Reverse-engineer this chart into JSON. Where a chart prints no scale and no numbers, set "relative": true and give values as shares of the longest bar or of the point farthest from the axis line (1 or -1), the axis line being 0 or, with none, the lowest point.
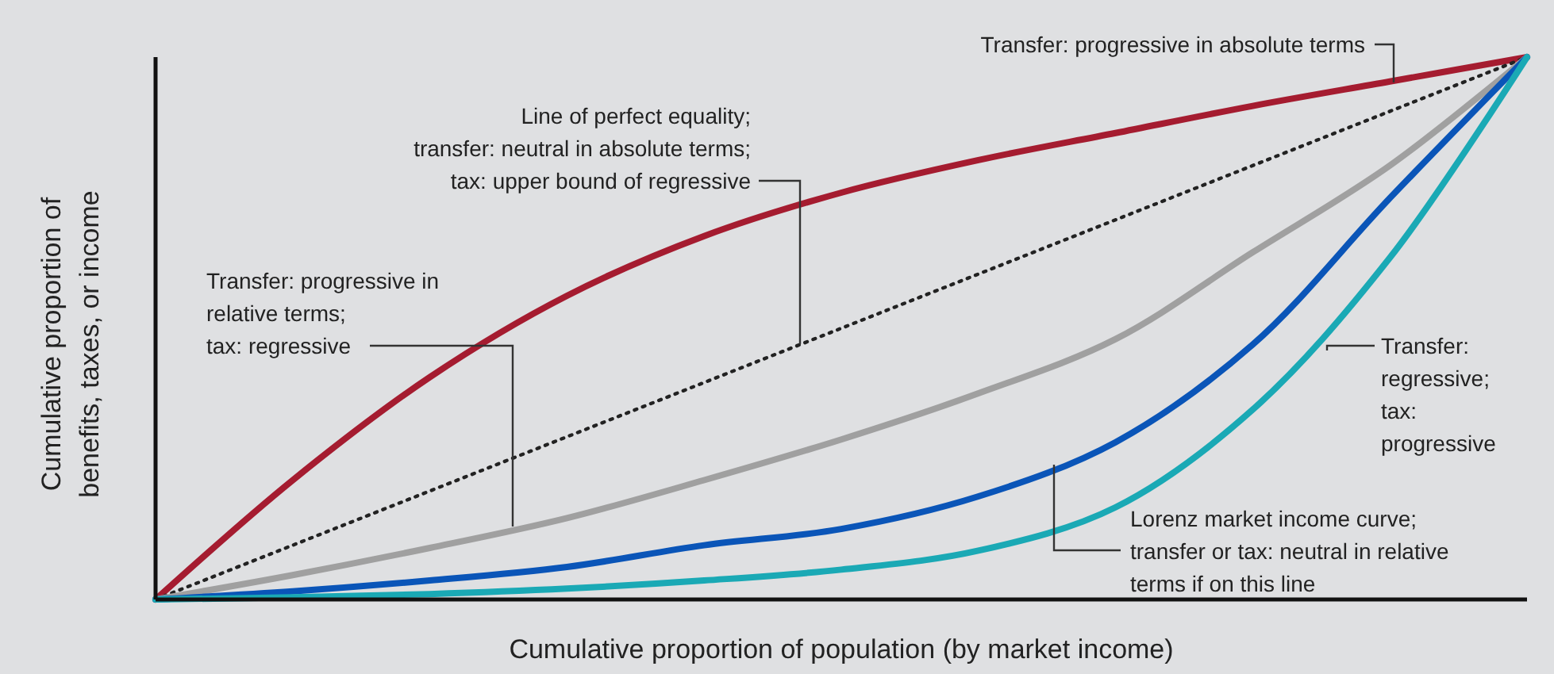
{
  "chart_data": {
    "type": "line",
    "relative": true,
    "xlabel": "Cumulative proportion of population (by market income)",
    "ylabel": "Cumulative proportion of\nbenefits, taxes, or income",
    "categories": [
      null,
      null,
      null,
      null,
      null,
      null,
      null,
      null,
      null,
      null,
      null
    ],
    "series": [
      {
        "color": "#a51c30",
        "values": [
          0,
          0.22,
          0.41,
          0.56,
          0.67,
          0.75,
          0.81,
          0.86,
          0.91,
          0.955,
          1
        ]
      },
      {
        "color": "#222222",
        "line_style": "dotted",
        "values": [
          0,
          0.1,
          0.2,
          0.3,
          0.4,
          0.5,
          0.6,
          0.7,
          0.8,
          0.9,
          1
        ]
      },
      {
        "color": "#a0a0a0",
        "values": [
          0,
          0.045,
          0.095,
          0.15,
          0.22,
          0.295,
          0.38,
          0.48,
          0.64,
          0.8,
          1
        ]
      },
      {
        "color": "#0a55b8",
        "values": [
          0,
          0.015,
          0.035,
          0.06,
          0.1,
          0.13,
          0.19,
          0.29,
          0.47,
          0.74,
          1
        ]
      },
      {
        "color": "#1aa9b5",
        "values": [
          0,
          0.004,
          0.01,
          0.02,
          0.035,
          0.055,
          0.09,
          0.17,
          0.35,
          0.63,
          1
        ]
      }
    ],
    "annotations": [
      "Transfer: progressive in absolute terms",
      "Line of perfect equality;\ntransfer: neutral in absolute terms;\ntax: upper bound of regressive",
      "Transfer: progressive in\nrelative terms;\ntax: regressive",
      "Transfer:\nregressive;\ntax:\nprogressive",
      "Lorenz market income curve;\ntransfer or tax: neutral in relative\nterms if on this line"
    ]
  }
}
